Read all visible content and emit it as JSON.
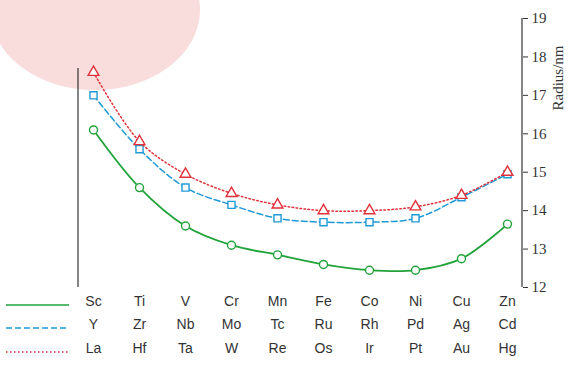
{
  "chart_data": {
    "type": "line",
    "y_label": "Radius/nm",
    "ylim": [
      12,
      19
    ],
    "yticks": [
      12,
      13,
      14,
      15,
      16,
      17,
      18,
      19
    ],
    "grid": false,
    "series": [
      {
        "categories": [
          "Sc",
          "Ti",
          "V",
          "Cr",
          "Mn",
          "Fe",
          "Co",
          "Ni",
          "Cu",
          "Zn"
        ],
        "values": [
          16.1,
          14.6,
          13.6,
          13.1,
          12.85,
          12.6,
          12.45,
          12.45,
          12.75,
          13.65
        ],
        "color": "#22a33a",
        "line_style": "solid",
        "marker": "circle"
      },
      {
        "categories": [
          "Y",
          "Zr",
          "Nb",
          "Mo",
          "Tc",
          "Ru",
          "Rh",
          "Pd",
          "Ag",
          "Cd"
        ],
        "values": [
          17.0,
          15.6,
          14.6,
          14.15,
          13.8,
          13.7,
          13.7,
          13.8,
          14.35,
          14.95
        ],
        "color": "#1f9ad6",
        "line_style": "dashed",
        "marker": "square"
      },
      {
        "categories": [
          "La",
          "Hf",
          "Ta",
          "W",
          "Re",
          "Os",
          "Ir",
          "Pt",
          "Au",
          "Hg"
        ],
        "values": [
          17.6,
          15.8,
          14.95,
          14.45,
          14.15,
          14.0,
          14.0,
          14.1,
          14.4,
          15.0
        ],
        "color": "#e0303a",
        "line_style": "dotted",
        "marker": "triangle"
      }
    ]
  }
}
